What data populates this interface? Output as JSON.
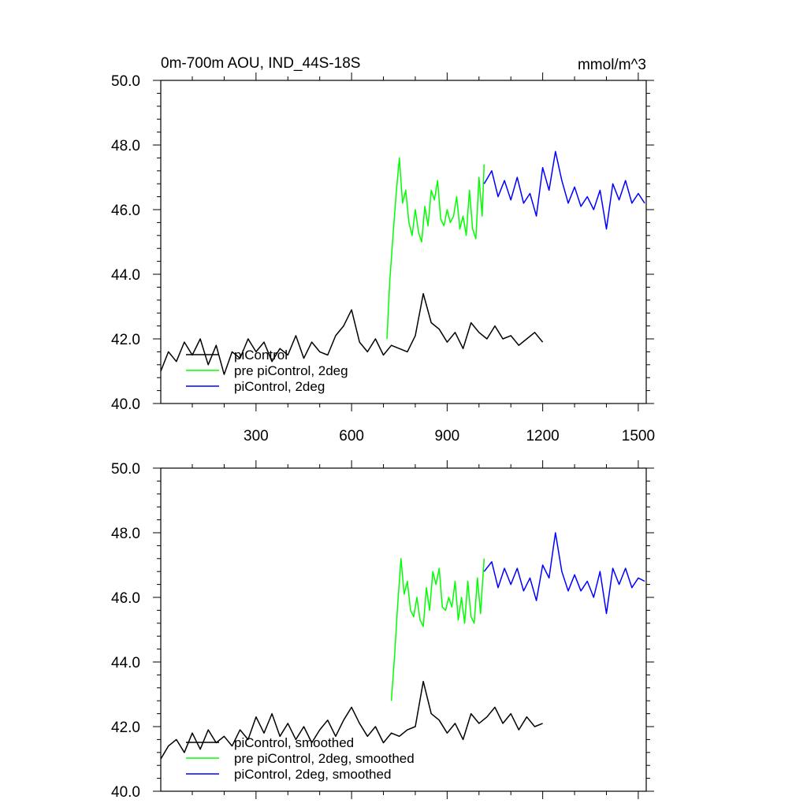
{
  "figure": {
    "title": "0m-700m AOU, IND_44S-18S",
    "units": "mmol/m^3"
  },
  "chart_data": [
    {
      "type": "line",
      "panel": "raw",
      "title": "0m-700m AOU, IND_44S-18S",
      "units": "mmol/m^3",
      "xlim": [
        1,
        1525
      ],
      "ylim": [
        40.0,
        50.0
      ],
      "x_ticks": [
        300,
        600,
        900,
        1200,
        1500
      ],
      "x_tick_labels": [
        "300",
        "600",
        "900",
        "1200",
        "1500"
      ],
      "y_ticks": [
        40.0,
        42.0,
        44.0,
        46.0,
        48.0,
        50.0
      ],
      "y_tick_labels": [
        "40.0",
        "42.0",
        "44.0",
        "46.0",
        "48.0",
        "50.0"
      ],
      "legend_position": "lower-left",
      "series": [
        {
          "name": "piControl",
          "color": "#000000",
          "x": [
            1,
            25,
            50,
            75,
            100,
            125,
            150,
            175,
            200,
            225,
            250,
            275,
            300,
            325,
            350,
            375,
            400,
            425,
            450,
            475,
            500,
            525,
            550,
            575,
            600,
            625,
            650,
            675,
            700,
            725,
            750,
            775,
            800,
            825,
            850,
            875,
            900,
            925,
            950,
            975,
            1000,
            1025,
            1050,
            1075,
            1100,
            1125,
            1150,
            1175,
            1200
          ],
          "y": [
            41.0,
            41.6,
            41.3,
            41.9,
            41.5,
            42.0,
            41.2,
            41.8,
            40.9,
            41.6,
            41.4,
            42.0,
            41.6,
            41.9,
            41.3,
            41.7,
            41.5,
            42.1,
            41.4,
            41.9,
            41.6,
            41.5,
            42.1,
            42.4,
            42.9,
            41.9,
            41.6,
            42.0,
            41.5,
            41.8,
            41.7,
            41.6,
            42.1,
            43.4,
            42.5,
            42.3,
            41.9,
            42.2,
            41.7,
            42.5,
            42.2,
            42.0,
            42.4,
            42.0,
            42.1,
            41.8,
            42.0,
            42.2,
            41.9
          ]
        },
        {
          "name": "pre piControl, 2deg",
          "color": "#00ff00",
          "x": [
            711,
            720,
            730,
            740,
            750,
            760,
            770,
            780,
            790,
            800,
            810,
            820,
            830,
            840,
            850,
            860,
            870,
            880,
            890,
            900,
            910,
            920,
            930,
            940,
            950,
            960,
            970,
            980,
            990,
            1000,
            1010,
            1016
          ],
          "y": [
            42.0,
            43.8,
            45.2,
            46.5,
            47.6,
            46.2,
            46.6,
            45.6,
            45.2,
            46.0,
            45.3,
            45.0,
            46.1,
            45.5,
            46.6,
            46.3,
            46.9,
            45.7,
            45.5,
            46.0,
            45.6,
            45.8,
            46.4,
            45.4,
            45.8,
            45.2,
            46.6,
            45.4,
            45.1,
            47.0,
            45.8,
            47.4
          ]
        },
        {
          "name": "piControl, 2deg",
          "color": "#0000ff",
          "x": [
            1016,
            1040,
            1060,
            1080,
            1100,
            1120,
            1140,
            1160,
            1180,
            1200,
            1220,
            1240,
            1260,
            1280,
            1300,
            1320,
            1340,
            1360,
            1380,
            1400,
            1420,
            1440,
            1460,
            1480,
            1500,
            1520
          ],
          "y": [
            46.8,
            47.2,
            46.4,
            46.9,
            46.3,
            47.0,
            46.2,
            46.5,
            45.8,
            47.3,
            46.6,
            47.8,
            46.9,
            46.2,
            46.7,
            46.1,
            46.4,
            46.0,
            46.6,
            45.4,
            46.8,
            46.3,
            46.9,
            46.2,
            46.5,
            46.2
          ]
        }
      ]
    },
    {
      "type": "line",
      "panel": "smoothed",
      "xlim": [
        1,
        1525
      ],
      "ylim": [
        40.0,
        50.0
      ],
      "y_ticks": [
        40.0,
        42.0,
        44.0,
        46.0,
        48.0,
        50.0
      ],
      "y_tick_labels": [
        "40.0",
        "42.0",
        "44.0",
        "46.0",
        "48.0",
        "50.0"
      ],
      "legend_position": "lower-left",
      "series": [
        {
          "name": "piControl, smoothed",
          "color": "#000000",
          "x": [
            1,
            25,
            50,
            75,
            100,
            125,
            150,
            175,
            200,
            225,
            250,
            275,
            300,
            325,
            350,
            375,
            400,
            425,
            450,
            475,
            500,
            525,
            550,
            575,
            600,
            625,
            650,
            675,
            700,
            725,
            750,
            775,
            800,
            825,
            850,
            875,
            900,
            925,
            950,
            975,
            1000,
            1025,
            1050,
            1075,
            1100,
            1125,
            1150,
            1175,
            1200
          ],
          "y": [
            41.0,
            41.4,
            41.6,
            41.2,
            41.8,
            41.3,
            41.9,
            41.5,
            41.7,
            41.4,
            41.9,
            41.6,
            42.3,
            41.8,
            42.4,
            41.7,
            42.1,
            41.6,
            42.0,
            41.5,
            41.9,
            42.2,
            41.7,
            42.2,
            42.6,
            42.1,
            41.7,
            42.0,
            41.5,
            41.8,
            41.7,
            41.9,
            42.0,
            43.4,
            42.4,
            42.2,
            41.8,
            42.1,
            41.6,
            42.4,
            42.1,
            42.3,
            42.6,
            42.1,
            42.4,
            41.9,
            42.3,
            42.0,
            42.1
          ]
        },
        {
          "name": "pre piControl, 2deg, smoothed",
          "color": "#00ff00",
          "x": [
            725,
            735,
            745,
            755,
            765,
            775,
            785,
            795,
            805,
            815,
            825,
            835,
            845,
            855,
            865,
            875,
            885,
            895,
            905,
            915,
            925,
            935,
            945,
            955,
            965,
            975,
            985,
            995,
            1005,
            1016
          ],
          "y": [
            42.8,
            44.2,
            45.8,
            47.2,
            46.1,
            46.5,
            45.6,
            45.4,
            46.0,
            45.3,
            45.1,
            46.3,
            45.6,
            46.8,
            46.4,
            46.9,
            45.7,
            45.6,
            46.0,
            45.7,
            46.5,
            45.3,
            46.0,
            45.2,
            46.5,
            45.4,
            45.2,
            46.6,
            45.5,
            47.2
          ]
        },
        {
          "name": "piControl, 2deg, smoothed",
          "color": "#0000ff",
          "x": [
            1016,
            1040,
            1060,
            1080,
            1100,
            1120,
            1140,
            1160,
            1180,
            1200,
            1220,
            1240,
            1260,
            1280,
            1300,
            1320,
            1340,
            1360,
            1380,
            1400,
            1420,
            1440,
            1460,
            1480,
            1500,
            1520
          ],
          "y": [
            46.8,
            47.1,
            46.3,
            46.9,
            46.4,
            46.9,
            46.2,
            46.6,
            45.9,
            47.0,
            46.6,
            48.0,
            46.8,
            46.2,
            46.7,
            46.2,
            46.5,
            46.0,
            46.8,
            45.5,
            46.9,
            46.4,
            46.9,
            46.3,
            46.6,
            46.5
          ]
        }
      ]
    }
  ]
}
